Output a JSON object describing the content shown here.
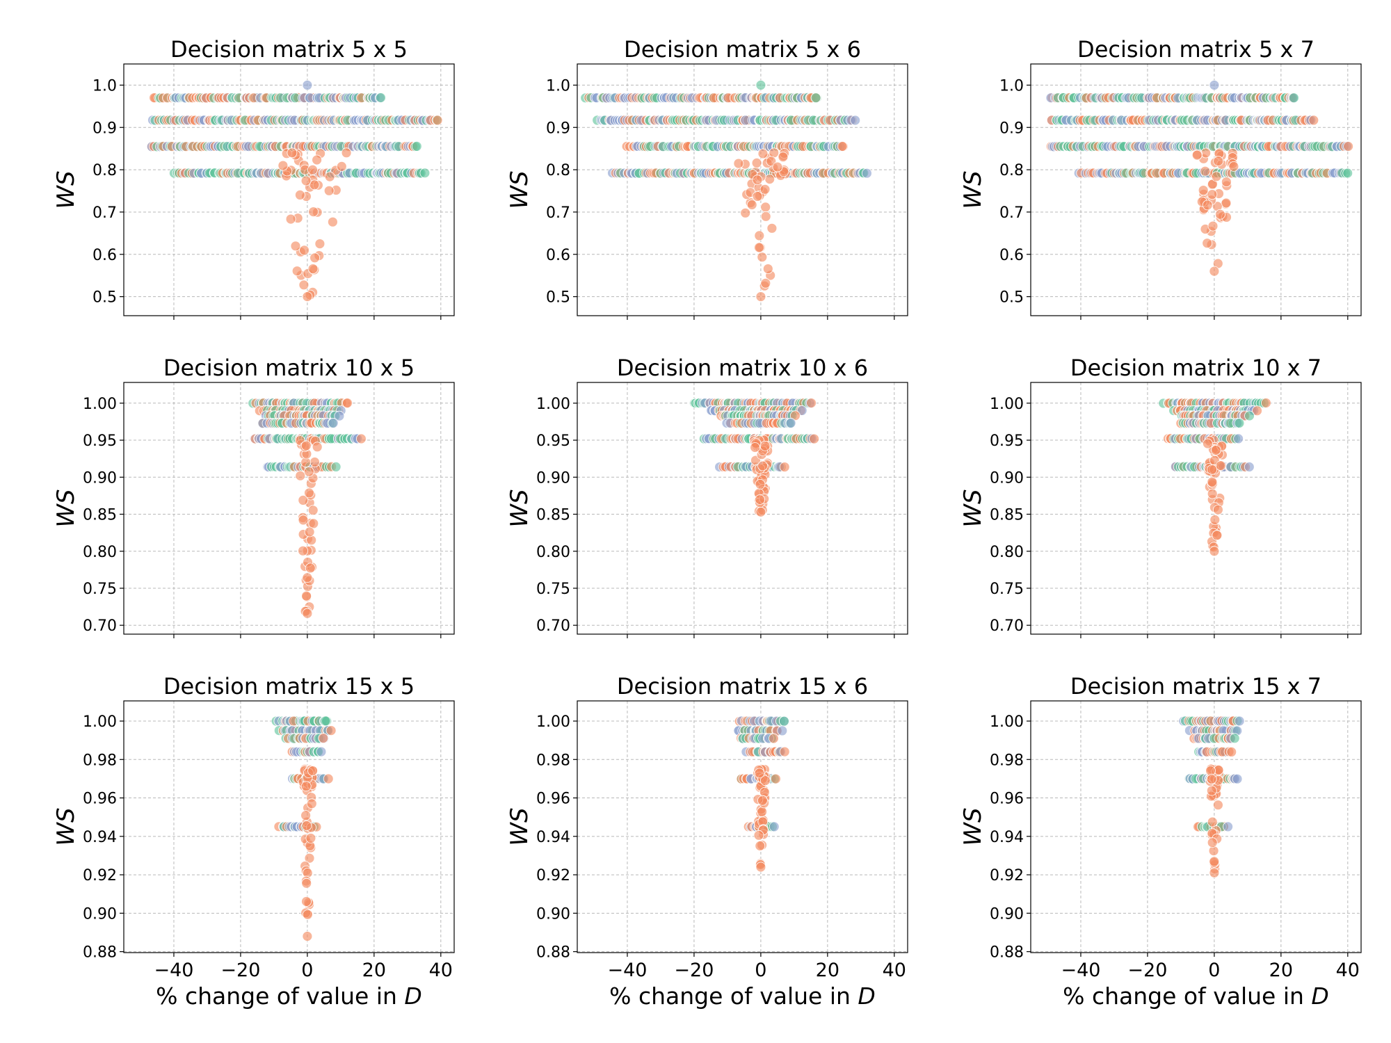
{
  "colors": {
    "orange": "#f4895d",
    "green": "#5fc39b",
    "blue": "#8a9fcf",
    "grid": "#b8b8b8"
  },
  "chart_data": [
    {
      "type": "scatter",
      "title": "Decision matrix 5 x 5",
      "xlabel": "",
      "ylabel": "WS",
      "xlim": [
        -55,
        44
      ],
      "ylim": [
        0.455,
        1.05
      ],
      "xticks": [
        -40,
        -20,
        0,
        20,
        40
      ],
      "xtick_labels": [],
      "yticks": [
        0.5,
        0.6,
        0.7,
        0.8,
        0.9,
        1.0
      ],
      "ytick_labels": [
        "0.5",
        "0.6",
        "0.7",
        "0.8",
        "0.9",
        "1.0"
      ],
      "grid": true,
      "levels": [
        {
          "y": 1.0,
          "span": [
            0,
            0
          ],
          "colors": [
            "blue"
          ]
        },
        {
          "y": 0.97,
          "span": [
            -46,
            22
          ],
          "colors": [
            "green",
            "blue",
            "orange"
          ]
        },
        {
          "y": 0.917,
          "span": [
            -46,
            39
          ],
          "colors": [
            "green",
            "blue",
            "orange"
          ]
        },
        {
          "y": 0.855,
          "span": [
            -47,
            33
          ],
          "colors": [
            "blue",
            "green",
            "orange"
          ]
        },
        {
          "y": 0.792,
          "span": [
            -40,
            35
          ],
          "colors": [
            "green",
            "orange",
            "blue"
          ]
        }
      ],
      "orange_tail": {
        "y_min": 0.5,
        "y_max": 0.84,
        "x_spread": 22
      }
    },
    {
      "type": "scatter",
      "title": "Decision matrix 5 x 6",
      "xlabel": "",
      "ylabel": "WS",
      "xlim": [
        -55,
        44
      ],
      "ylim": [
        0.455,
        1.05
      ],
      "xticks": [
        -40,
        -20,
        0,
        20,
        40
      ],
      "xtick_labels": [],
      "yticks": [
        0.5,
        0.6,
        0.7,
        0.8,
        0.9,
        1.0
      ],
      "ytick_labels": [
        "0.5",
        "0.6",
        "0.7",
        "0.8",
        "0.9",
        "1.0"
      ],
      "grid": true,
      "levels": [
        {
          "y": 1.0,
          "span": [
            0,
            0
          ],
          "colors": [
            "green"
          ]
        },
        {
          "y": 0.97,
          "span": [
            -52,
            17
          ],
          "colors": [
            "green",
            "blue",
            "orange"
          ]
        },
        {
          "y": 0.917,
          "span": [
            -49,
            28
          ],
          "colors": [
            "green",
            "blue",
            "orange"
          ]
        },
        {
          "y": 0.855,
          "span": [
            -40,
            25
          ],
          "colors": [
            "blue",
            "green",
            "orange"
          ]
        },
        {
          "y": 0.792,
          "span": [
            -44,
            32
          ],
          "colors": [
            "green",
            "blue",
            "orange"
          ]
        }
      ],
      "orange_tail": {
        "y_min": 0.5,
        "y_max": 0.84,
        "x_spread": 16
      }
    },
    {
      "type": "scatter",
      "title": "Decision matrix 5 x 7",
      "xlabel": "",
      "ylabel": "WS",
      "xlim": [
        -55,
        44
      ],
      "ylim": [
        0.455,
        1.05
      ],
      "xticks": [
        -40,
        -20,
        0,
        20,
        40
      ],
      "xtick_labels": [],
      "yticks": [
        0.5,
        0.6,
        0.7,
        0.8,
        0.9,
        1.0
      ],
      "ytick_labels": [
        "0.5",
        "0.6",
        "0.7",
        "0.8",
        "0.9",
        "1.0"
      ],
      "grid": true,
      "levels": [
        {
          "y": 1.0,
          "span": [
            0,
            0
          ],
          "colors": [
            "blue"
          ]
        },
        {
          "y": 0.97,
          "span": [
            -49,
            24
          ],
          "colors": [
            "green",
            "blue",
            "orange"
          ]
        },
        {
          "y": 0.917,
          "span": [
            -49,
            30
          ],
          "colors": [
            "green",
            "blue",
            "orange"
          ]
        },
        {
          "y": 0.855,
          "span": [
            -49,
            40
          ],
          "colors": [
            "green",
            "blue",
            "orange"
          ]
        },
        {
          "y": 0.792,
          "span": [
            -40,
            40
          ],
          "colors": [
            "green",
            "blue",
            "orange"
          ]
        }
      ],
      "orange_tail": {
        "y_min": 0.56,
        "y_max": 0.84,
        "x_spread": 12
      }
    },
    {
      "type": "scatter",
      "title": "Decision matrix 10 x 5",
      "xlabel": "",
      "ylabel": "WS",
      "xlim": [
        -55,
        44
      ],
      "ylim": [
        0.688,
        1.028
      ],
      "xticks": [
        -40,
        -20,
        0,
        20,
        40
      ],
      "xtick_labels": [],
      "yticks": [
        0.7,
        0.75,
        0.8,
        0.85,
        0.9,
        0.95,
        1.0
      ],
      "ytick_labels": [
        "0.70",
        "0.75",
        "0.80",
        "0.85",
        "0.90",
        "0.95",
        "1.00"
      ],
      "grid": true,
      "levels": [
        {
          "y": 1.0,
          "span": [
            -16,
            12
          ],
          "colors": [
            "green",
            "blue",
            "orange"
          ]
        },
        {
          "y": 0.99,
          "span": [
            -14,
            10
          ],
          "colors": [
            "blue",
            "green",
            "orange"
          ]
        },
        {
          "y": 0.983,
          "span": [
            -12,
            9
          ],
          "colors": [
            "green",
            "blue",
            "orange"
          ]
        },
        {
          "y": 0.973,
          "span": [
            -14,
            8
          ],
          "colors": [
            "blue",
            "green",
            "orange"
          ]
        },
        {
          "y": 0.952,
          "span": [
            -16,
            16
          ],
          "colors": [
            "green",
            "blue",
            "orange"
          ]
        },
        {
          "y": 0.914,
          "span": [
            -12,
            8
          ],
          "colors": [
            "green",
            "blue",
            "orange"
          ]
        }
      ],
      "orange_tail": {
        "y_min": 0.716,
        "y_max": 0.95,
        "x_spread": 6
      }
    },
    {
      "type": "scatter",
      "title": "Decision matrix 10 x 6",
      "xlabel": "",
      "ylabel": "WS",
      "xlim": [
        -55,
        44
      ],
      "ylim": [
        0.688,
        1.028
      ],
      "xticks": [
        -40,
        -20,
        0,
        20,
        40
      ],
      "xtick_labels": [],
      "yticks": [
        0.7,
        0.75,
        0.8,
        0.85,
        0.9,
        0.95,
        1.0
      ],
      "ytick_labels": [
        "0.70",
        "0.75",
        "0.80",
        "0.85",
        "0.90",
        "0.95",
        "1.00"
      ],
      "grid": true,
      "levels": [
        {
          "y": 1.0,
          "span": [
            -20,
            15
          ],
          "colors": [
            "blue",
            "green",
            "orange"
          ]
        },
        {
          "y": 0.99,
          "span": [
            -15,
            12
          ],
          "colors": [
            "green",
            "blue",
            "orange"
          ]
        },
        {
          "y": 0.983,
          "span": [
            -12,
            10
          ],
          "colors": [
            "blue",
            "green",
            "orange"
          ]
        },
        {
          "y": 0.973,
          "span": [
            -10,
            9
          ],
          "colors": [
            "green",
            "blue",
            "orange"
          ]
        },
        {
          "y": 0.952,
          "span": [
            -17,
            16
          ],
          "colors": [
            "green",
            "blue",
            "orange"
          ]
        },
        {
          "y": 0.914,
          "span": [
            -12,
            7
          ],
          "colors": [
            "green",
            "blue",
            "orange"
          ]
        }
      ],
      "orange_tail": {
        "y_min": 0.853,
        "y_max": 0.95,
        "x_spread": 5
      }
    },
    {
      "type": "scatter",
      "title": "Decision matrix 10 x 7",
      "xlabel": "",
      "ylabel": "WS",
      "xlim": [
        -55,
        44
      ],
      "ylim": [
        0.688,
        1.028
      ],
      "xticks": [
        -40,
        -20,
        0,
        20,
        40
      ],
      "xtick_labels": [],
      "yticks": [
        0.7,
        0.75,
        0.8,
        0.85,
        0.9,
        0.95,
        1.0
      ],
      "ytick_labels": [
        "0.70",
        "0.75",
        "0.80",
        "0.85",
        "0.90",
        "0.95",
        "1.00"
      ],
      "grid": true,
      "levels": [
        {
          "y": 1.0,
          "span": [
            -15,
            15
          ],
          "colors": [
            "green",
            "blue",
            "orange"
          ]
        },
        {
          "y": 0.99,
          "span": [
            -12,
            13
          ],
          "colors": [
            "blue",
            "green",
            "orange"
          ]
        },
        {
          "y": 0.983,
          "span": [
            -10,
            10
          ],
          "colors": [
            "green",
            "blue",
            "orange"
          ]
        },
        {
          "y": 0.973,
          "span": [
            -10,
            8
          ],
          "colors": [
            "blue",
            "green",
            "orange"
          ]
        },
        {
          "y": 0.952,
          "span": [
            -14,
            6
          ],
          "colors": [
            "green",
            "blue",
            "orange"
          ]
        },
        {
          "y": 0.914,
          "span": [
            -12,
            10
          ],
          "colors": [
            "green",
            "blue",
            "orange"
          ]
        }
      ],
      "orange_tail": {
        "y_min": 0.8,
        "y_max": 0.95,
        "x_spread": 5
      }
    },
    {
      "type": "scatter",
      "title": "Decision matrix 15 x 5",
      "xlabel": "% change of value in D",
      "ylabel": "WS",
      "xlim": [
        -55,
        44
      ],
      "ylim": [
        0.8795,
        1.0105
      ],
      "xticks": [
        -40,
        -20,
        0,
        20,
        40
      ],
      "xtick_labels": [
        "−40",
        "−20",
        "0",
        "20",
        "40"
      ],
      "yticks": [
        0.88,
        0.9,
        0.92,
        0.94,
        0.96,
        0.98,
        1.0
      ],
      "ytick_labels": [
        "0.88",
        "0.90",
        "0.92",
        "0.94",
        "0.96",
        "0.98",
        "1.00"
      ],
      "grid": true,
      "levels": [
        {
          "y": 1.0,
          "span": [
            -9,
            6
          ],
          "colors": [
            "green",
            "blue",
            "orange"
          ]
        },
        {
          "y": 0.995,
          "span": [
            -8,
            7
          ],
          "colors": [
            "blue",
            "green",
            "orange"
          ]
        },
        {
          "y": 0.991,
          "span": [
            -6,
            5
          ],
          "colors": [
            "green",
            "blue",
            "orange"
          ]
        },
        {
          "y": 0.984,
          "span": [
            -4,
            4
          ],
          "colors": [
            "blue",
            "green",
            "orange"
          ]
        },
        {
          "y": 0.97,
          "span": [
            -5,
            6
          ],
          "colors": [
            "green",
            "blue",
            "orange"
          ]
        },
        {
          "y": 0.945,
          "span": [
            -8,
            3
          ],
          "colors": [
            "blue",
            "green",
            "orange"
          ]
        }
      ],
      "orange_tail": {
        "y_min": 0.888,
        "y_max": 0.975,
        "x_spread": 3
      }
    },
    {
      "type": "scatter",
      "title": "Decision matrix 15 x 6",
      "xlabel": "% change of value in D",
      "ylabel": "WS",
      "xlim": [
        -55,
        44
      ],
      "ylim": [
        0.8795,
        1.0105
      ],
      "xticks": [
        -40,
        -20,
        0,
        20,
        40
      ],
      "xtick_labels": [
        "−40",
        "−20",
        "0",
        "20",
        "40"
      ],
      "yticks": [
        0.88,
        0.9,
        0.92,
        0.94,
        0.96,
        0.98,
        1.0
      ],
      "ytick_labels": [
        "0.88",
        "0.90",
        "0.92",
        "0.94",
        "0.96",
        "0.98",
        "1.00"
      ],
      "grid": true,
      "levels": [
        {
          "y": 1.0,
          "span": [
            -6,
            7
          ],
          "colors": [
            "blue",
            "green",
            "orange"
          ]
        },
        {
          "y": 0.995,
          "span": [
            -7,
            6
          ],
          "colors": [
            "green",
            "blue",
            "orange"
          ]
        },
        {
          "y": 0.991,
          "span": [
            -6,
            4
          ],
          "colors": [
            "blue",
            "green",
            "orange"
          ]
        },
        {
          "y": 0.984,
          "span": [
            -4,
            7
          ],
          "colors": [
            "green",
            "blue",
            "orange"
          ]
        },
        {
          "y": 0.97,
          "span": [
            -6,
            5
          ],
          "colors": [
            "green",
            "blue",
            "orange"
          ]
        },
        {
          "y": 0.945,
          "span": [
            -4,
            4
          ],
          "colors": [
            "green",
            "blue",
            "orange"
          ]
        }
      ],
      "orange_tail": {
        "y_min": 0.924,
        "y_max": 0.975,
        "x_spread": 3
      }
    },
    {
      "type": "scatter",
      "title": "Decision matrix 15 x 7",
      "xlabel": "% change of value in D",
      "ylabel": "WS",
      "xlim": [
        -55,
        44
      ],
      "ylim": [
        0.8795,
        1.0105
      ],
      "xticks": [
        -40,
        -20,
        0,
        20,
        40
      ],
      "xtick_labels": [
        "−40",
        "−20",
        "0",
        "20",
        "40"
      ],
      "yticks": [
        0.88,
        0.9,
        0.92,
        0.94,
        0.96,
        0.98,
        1.0
      ],
      "ytick_labels": [
        "0.88",
        "0.90",
        "0.92",
        "0.94",
        "0.96",
        "0.98",
        "1.00"
      ],
      "grid": true,
      "levels": [
        {
          "y": 1.0,
          "span": [
            -9,
            7
          ],
          "colors": [
            "green",
            "blue",
            "orange"
          ]
        },
        {
          "y": 0.995,
          "span": [
            -7,
            7
          ],
          "colors": [
            "blue",
            "green",
            "orange"
          ]
        },
        {
          "y": 0.991,
          "span": [
            -6,
            6
          ],
          "colors": [
            "green",
            "blue",
            "orange"
          ]
        },
        {
          "y": 0.984,
          "span": [
            -5,
            5
          ],
          "colors": [
            "blue",
            "green",
            "orange"
          ]
        },
        {
          "y": 0.97,
          "span": [
            -8,
            7
          ],
          "colors": [
            "green",
            "blue",
            "orange"
          ]
        },
        {
          "y": 0.945,
          "span": [
            -5,
            4
          ],
          "colors": [
            "green",
            "blue",
            "orange"
          ]
        }
      ],
      "orange_tail": {
        "y_min": 0.921,
        "y_max": 0.975,
        "x_spread": 3
      }
    }
  ]
}
